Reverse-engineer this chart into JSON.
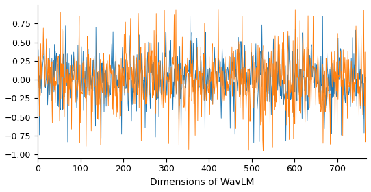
{
  "xlabel": "Dimensions of WavLM",
  "ylim": [
    -1.05,
    1.0
  ],
  "yticks": [
    -1.0,
    -0.75,
    -0.5,
    -0.25,
    0.0,
    0.25,
    0.5,
    0.75
  ],
  "xlim": [
    0,
    768
  ],
  "xticks": [
    0,
    100,
    200,
    300,
    400,
    500,
    600,
    700
  ],
  "n_dims": 768,
  "color_blue": "#1f77b4",
  "color_orange": "#ff7f0e",
  "figsize": [
    5.42,
    2.8
  ],
  "dpi": 100,
  "linewidth": 0.6
}
